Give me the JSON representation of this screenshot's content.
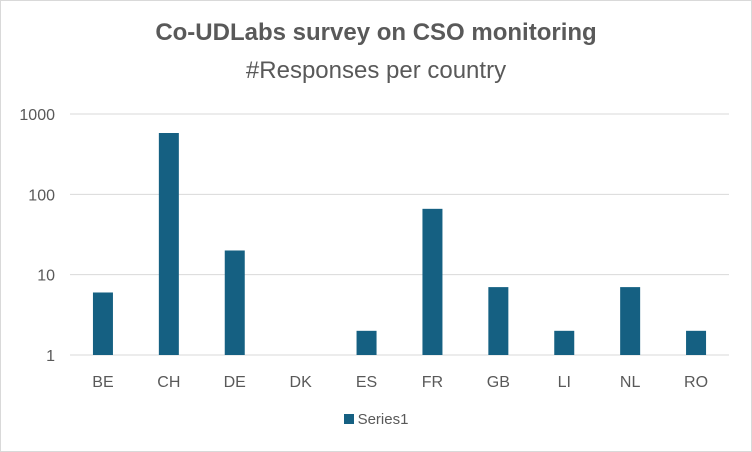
{
  "chart_data": {
    "type": "bar",
    "title": "Co-UDLabs survey on CSO monitoring",
    "subtitle": "#Responses per country",
    "categories": [
      "BE",
      "CH",
      "DE",
      "DK",
      "ES",
      "FR",
      "GB",
      "LI",
      "NL",
      "RO"
    ],
    "series": [
      {
        "name": "Series1",
        "values": [
          6,
          580,
          20,
          1,
          2,
          66,
          7,
          2,
          7,
          2
        ]
      }
    ],
    "y_scale": "log",
    "ylim": [
      1,
      1000
    ],
    "y_ticks": [
      1,
      10,
      100,
      1000
    ],
    "y_tick_labels": [
      "1",
      "10",
      "100",
      "1000"
    ],
    "grid": true,
    "legend_position": "bottom",
    "bar_color": "#156082",
    "grid_color": "#d9d9d9"
  }
}
